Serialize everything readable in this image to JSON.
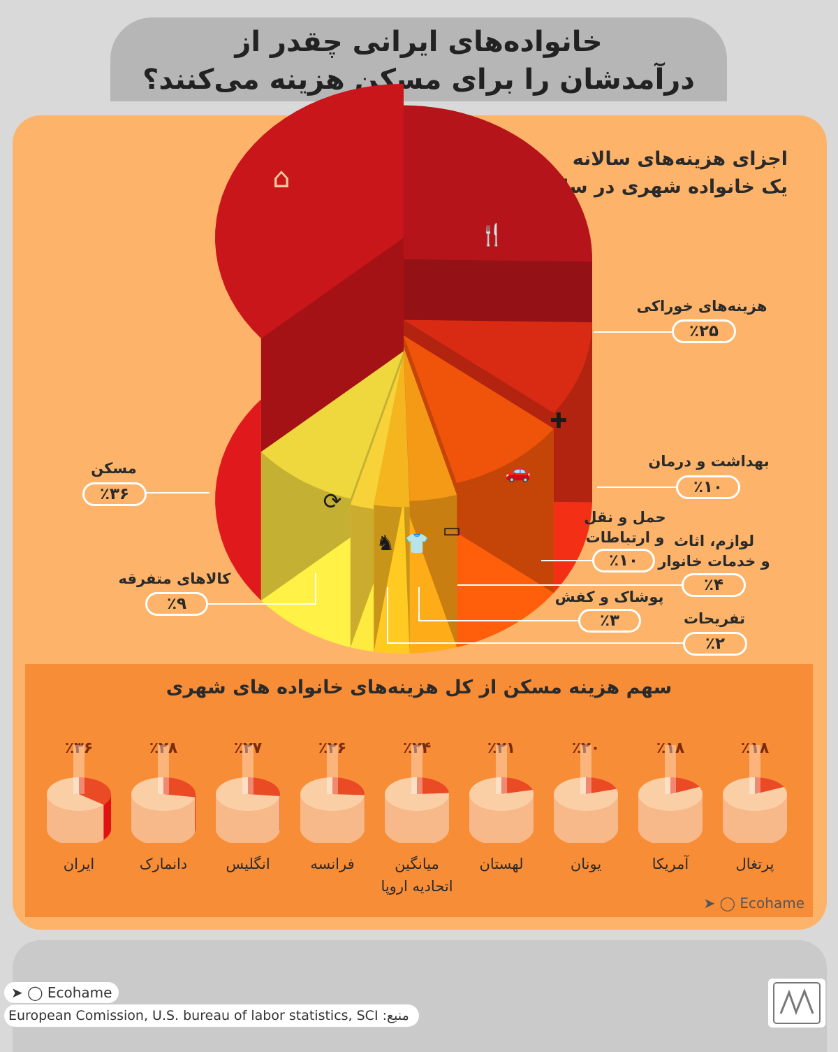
{
  "title": {
    "line1": "خانواده‌های ایرانی چقدر از",
    "line2": "درآمدشان را برای مسکن هزینه می‌کنند؟"
  },
  "pie_heading": {
    "line1": "اجزای هزینه‌های سالانه",
    "line2": "یک خانواده شهری در سال ۹۸"
  },
  "labels": {
    "housing": {
      "name": "مسکن",
      "pct": "٪۳۶"
    },
    "food": {
      "name": "هزینه‌های خوراکی",
      "pct": "٪۲۵"
    },
    "health": {
      "name": "بهداشت و درمان",
      "pct": "٪۱۰"
    },
    "transport": {
      "name1": "حمل و نقل",
      "name2": "و ارتباطات",
      "pct": "٪۱۰"
    },
    "furniture": {
      "name1": "لوازم، اثاث",
      "name2": "و خدمات خانوار",
      "pct": "٪۴"
    },
    "clothing": {
      "name": "پوشاک و کفش",
      "pct": "٪۳"
    },
    "recreation": {
      "name": "تفریحات",
      "pct": "٪۲"
    },
    "misc": {
      "name": "کالاهای متفرقه",
      "pct": "٪۹"
    }
  },
  "strip_title": "سهم هزینه مسکن از کل هزینه‌های خانواده های شهری",
  "countries": [
    {
      "name": "ایران",
      "pct_label": "٪۳۶"
    },
    {
      "name": "دانمارک",
      "pct_label": "٪۲۸"
    },
    {
      "name": "انگلیس",
      "pct_label": "٪۲۷"
    },
    {
      "name": "فرانسه",
      "pct_label": "٪۲۶"
    },
    {
      "name": "میانگین",
      "name2": "اتحادیه اروپا",
      "pct_label": "٪۲۴"
    },
    {
      "name": "لهستان",
      "pct_label": "٪۲۱"
    },
    {
      "name": "یونان",
      "pct_label": "٪۲۰"
    },
    {
      "name": "آمریکا",
      "pct_label": "٪۱۸"
    },
    {
      "name": "پرتغال",
      "pct_label": "٪۱۸"
    }
  ],
  "brand": "Ecohame",
  "source": "European Comission, U.S. bureau of labor statistics, SCI :منبع",
  "colors": {
    "panel": "#fdb46a",
    "strip": "#f88d37",
    "housing": "#c8161a",
    "food": "#b5151a",
    "health": "#d92b14",
    "transport": "#f0540a",
    "furniture": "#f59a16",
    "clothing": "#f4b51f",
    "recreation": "#f7d238",
    "misc": "#efd73e"
  },
  "icons": [
    "home-icon",
    "food-icon",
    "medical-icon",
    "car-icon",
    "sofa-icon",
    "shirt-icon",
    "horse-icon",
    "refresh-icon",
    "telegram-icon",
    "instagram-icon"
  ],
  "chart_data": [
    {
      "type": "pie",
      "title": "اجزای هزینه‌های سالانه یک خانواده شهری در سال ۹۸",
      "categories": [
        "مسکن",
        "هزینه‌های خوراکی",
        "بهداشت و درمان",
        "حمل و نقل و ارتباطات",
        "لوازم، اثاث و خدمات خانوار",
        "پوشاک و کفش",
        "تفریحات",
        "کالاهای متفرقه"
      ],
      "values": [
        36,
        25,
        10,
        10,
        4,
        3,
        2,
        9
      ],
      "unit": "%"
    },
    {
      "type": "bar",
      "title": "سهم هزینه مسکن از کل هزینه‌های خانواده های شهری",
      "categories": [
        "ایران",
        "دانمارک",
        "انگلیس",
        "فرانسه",
        "میانگین اتحادیه اروپا",
        "لهستان",
        "یونان",
        "آمریکا",
        "پرتغال"
      ],
      "values": [
        36,
        28,
        27,
        26,
        24,
        21,
        20,
        18,
        18
      ],
      "unit": "%"
    }
  ]
}
